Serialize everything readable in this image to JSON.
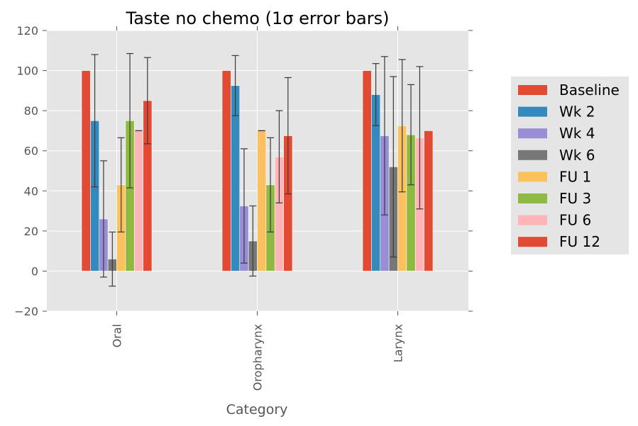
{
  "chart_data": {
    "type": "bar",
    "title": "Taste no chemo (1σ error bars)",
    "xlabel": "Category",
    "ylabel": "",
    "categories": [
      "Oral",
      "Oropharynx",
      "Larynx"
    ],
    "ylim": [
      -20,
      120
    ],
    "yticks": [
      -20,
      0,
      20,
      40,
      60,
      80,
      100,
      120
    ],
    "ytick_labels": [
      "−20",
      "0",
      "20",
      "40",
      "60",
      "80",
      "100",
      "120"
    ],
    "grid": true,
    "legend_position": "right",
    "series": [
      {
        "name": "Baseline",
        "color": "#E24A33",
        "values": [
          100,
          100,
          100
        ],
        "errors": [
          null,
          null,
          null
        ]
      },
      {
        "name": "Wk 2",
        "color": "#348ABD",
        "values": [
          75,
          92.5,
          88
        ],
        "errors": [
          33,
          15,
          15.5
        ]
      },
      {
        "name": "Wk 4",
        "color": "#988ED5",
        "values": [
          26,
          32.5,
          67.5
        ],
        "errors": [
          29,
          28.5,
          39.5
        ]
      },
      {
        "name": "Wk 6",
        "color": "#777777",
        "values": [
          6,
          15,
          52
        ],
        "errors": [
          13.5,
          17.5,
          45
        ]
      },
      {
        "name": "FU 1",
        "color": "#FBC15E",
        "values": [
          43,
          70,
          72.5
        ],
        "errors": [
          23.5,
          0,
          33
        ]
      },
      {
        "name": "FU 3",
        "color": "#8EBA42",
        "values": [
          75,
          43,
          68
        ],
        "errors": [
          33.5,
          23.5,
          25
        ]
      },
      {
        "name": "FU 6",
        "color": "#FFB5B8",
        "values": [
          70,
          57,
          66.5
        ],
        "errors": [
          0,
          23,
          35.5
        ]
      },
      {
        "name": "FU 12",
        "color": "#E24A33",
        "values": [
          85,
          67.5,
          70
        ],
        "errors": [
          21.5,
          29,
          null
        ]
      }
    ]
  }
}
